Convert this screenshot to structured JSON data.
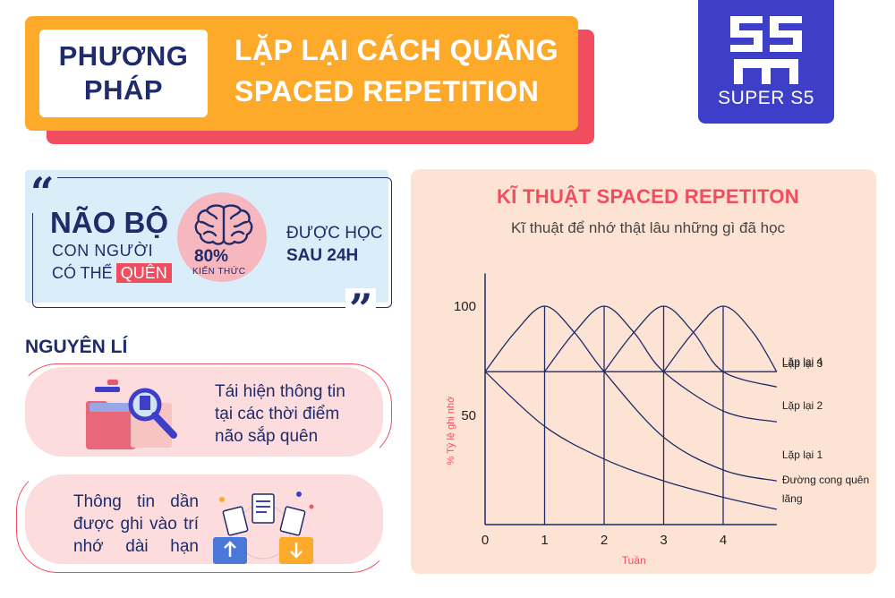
{
  "header": {
    "method_line1": "PHƯƠNG",
    "method_line2": "PHÁP",
    "title_line1": "LẶP LẠI CÁCH QUÃNG",
    "title_line2": "SPACED REPETITION"
  },
  "logo": {
    "text": "SUPER S5",
    "mark": "S5"
  },
  "quote": {
    "open_mark": "“",
    "close_mark": "”",
    "headline": "NÃO BỘ",
    "line2": "CON NGƯỜI",
    "line3_prefix": "CÓ THỂ",
    "highlight": "QUÊN",
    "percent": "80%",
    "percent_label": "KIẾN THỨC",
    "after_line1": "ĐƯỢC HỌC",
    "after_line2": "SAU 24H"
  },
  "principles": {
    "title": "NGUYÊN LÍ",
    "items": [
      {
        "text": "Tái hiện thông tin tại các thời điểm não sắp quên"
      },
      {
        "text": "Thông tin dần được ghi vào trí nhớ dài hạn"
      }
    ]
  },
  "chart_data": {
    "type": "line",
    "title": "KĨ THUẬT SPACED REPETITON",
    "subtitle": "Kĩ thuật để nhớ thật lâu những gì đã học",
    "xlabel": "Tuần",
    "ylabel": "% Tỷ lệ ghi nhớ",
    "x_ticks": [
      "0",
      "1",
      "2",
      "3",
      "4"
    ],
    "y_ticks": [
      "100",
      "50"
    ],
    "xlim": [
      0,
      4.9
    ],
    "ylim": [
      0,
      115
    ],
    "series": [
      {
        "name": "Đường cong quên lãng",
        "points": [
          [
            0,
            70
          ],
          [
            1,
            45
          ],
          [
            2,
            30
          ],
          [
            3,
            20
          ],
          [
            4,
            12.5
          ],
          [
            4.9,
            7
          ]
        ]
      },
      {
        "name": "Lặp lại 1",
        "points": [
          [
            0,
            70
          ],
          [
            0.5,
            88
          ],
          [
            1,
            100
          ],
          [
            1.5,
            88
          ],
          [
            2,
            70
          ],
          [
            3,
            40
          ],
          [
            4,
            25
          ],
          [
            4.9,
            20
          ]
        ]
      },
      {
        "name": "Lặp lại 2",
        "points": [
          [
            1,
            70
          ],
          [
            1.5,
            88
          ],
          [
            2,
            100
          ],
          [
            2.5,
            88
          ],
          [
            3,
            70
          ],
          [
            4,
            52
          ],
          [
            4.9,
            47
          ]
        ]
      },
      {
        "name": "Lặp lại 3",
        "points": [
          [
            2,
            70
          ],
          [
            2.5,
            88
          ],
          [
            3,
            100
          ],
          [
            3.5,
            88
          ],
          [
            4,
            70
          ],
          [
            4.9,
            63
          ]
        ]
      },
      {
        "name": "Lặp lại 4",
        "points": [
          [
            3,
            70
          ],
          [
            3.5,
            88
          ],
          [
            4,
            100
          ],
          [
            4.5,
            88
          ],
          [
            4.9,
            70
          ]
        ]
      }
    ],
    "baseline": 70,
    "colors": {
      "lines": "#1f2b6b",
      "axis_title": "#f04e5f",
      "background": "#fde3d3"
    }
  },
  "colors": {
    "navy": "#1f2b6b",
    "orange": "#fdaa2a",
    "red": "#f04e5f",
    "blue": "#3d3fc9",
    "light_blue": "#d9eef8",
    "pink": "#fcdcdc"
  }
}
